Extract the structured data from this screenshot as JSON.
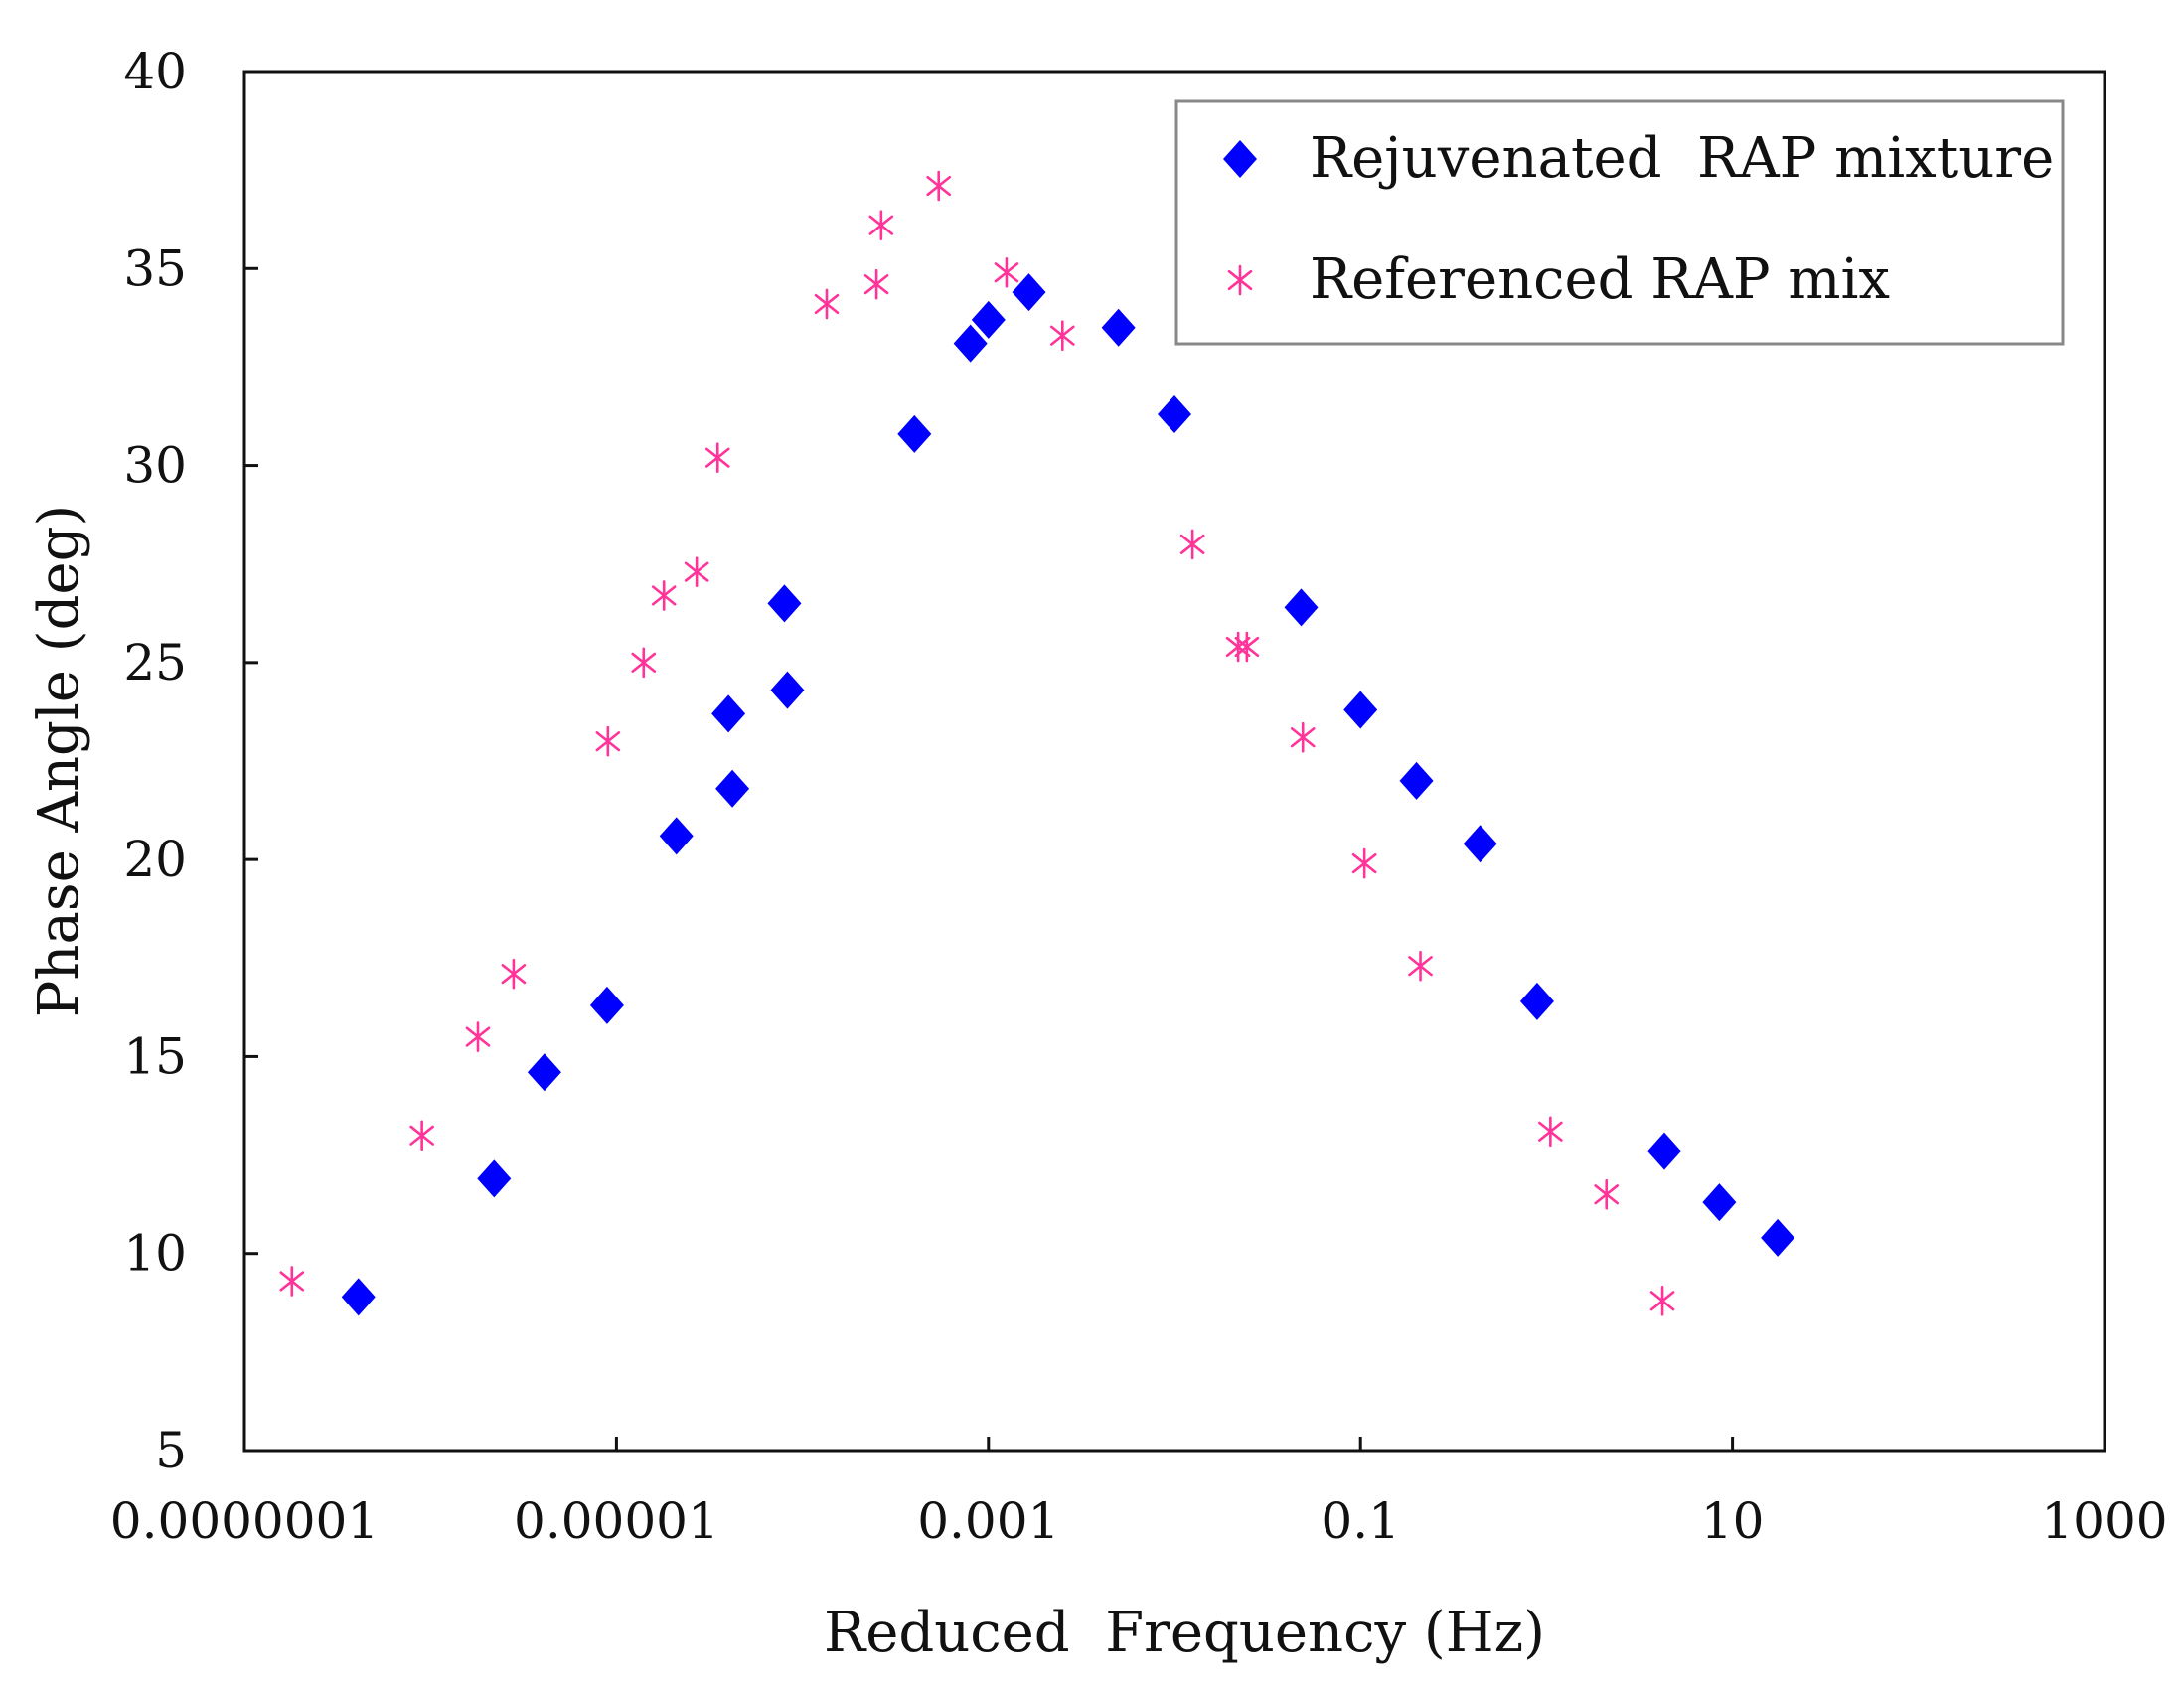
{
  "chart_data": {
    "type": "scatter",
    "title": "",
    "xlabel": "Reduced  Frequency (Hz)",
    "ylabel": "Phase Angle (deg)",
    "xscale": "log",
    "xlim": [
      1e-07,
      1000
    ],
    "ylim": [
      5,
      40
    ],
    "xticks": [
      1e-07,
      1e-05,
      0.001,
      0.1,
      10,
      1000
    ],
    "xtick_labels": [
      "0.0000001",
      "0.00001",
      "0.001",
      "0.1",
      "10",
      "1000"
    ],
    "yticks": [
      5,
      10,
      15,
      20,
      25,
      30,
      35,
      40
    ],
    "ytick_labels": [
      "5",
      "10",
      "15",
      "20",
      "25",
      "30",
      "35",
      "40"
    ],
    "grid": false,
    "legend_position": "top-right",
    "series": [
      {
        "name": "Rejuvenated  RAP mixture",
        "marker": "diamond",
        "color": "#0000ff",
        "points": [
          {
            "x": 4.1e-07,
            "y": 8.9
          },
          {
            "x": 2.2e-06,
            "y": 11.9
          },
          {
            "x": 4.1e-06,
            "y": 14.6
          },
          {
            "x": 8.9e-06,
            "y": 16.3
          },
          {
            "x": 2.1e-05,
            "y": 20.6
          },
          {
            "x": 4e-05,
            "y": 23.7
          },
          {
            "x": 4.2e-05,
            "y": 21.8
          },
          {
            "x": 8e-05,
            "y": 26.5
          },
          {
            "x": 8.3e-05,
            "y": 24.3
          },
          {
            "x": 0.0004,
            "y": 30.8
          },
          {
            "x": 0.0008,
            "y": 33.1
          },
          {
            "x": 0.001,
            "y": 33.7
          },
          {
            "x": 0.00165,
            "y": 34.4
          },
          {
            "x": 0.005,
            "y": 33.5
          },
          {
            "x": 0.01,
            "y": 31.3
          },
          {
            "x": 0.048,
            "y": 26.4
          },
          {
            "x": 0.1,
            "y": 23.8
          },
          {
            "x": 0.2,
            "y": 22.0
          },
          {
            "x": 0.44,
            "y": 20.4
          },
          {
            "x": 0.89,
            "y": 16.4
          },
          {
            "x": 4.3,
            "y": 12.6
          },
          {
            "x": 8.5,
            "y": 11.3
          },
          {
            "x": 17.5,
            "y": 10.4
          }
        ]
      },
      {
        "name": "Referenced RAP mix",
        "marker": "asterisk",
        "color": "#ff3399",
        "points": [
          {
            "x": 1.8e-07,
            "y": 9.3
          },
          {
            "x": 9e-07,
            "y": 13.0
          },
          {
            "x": 1.8e-06,
            "y": 15.5
          },
          {
            "x": 2.8e-06,
            "y": 17.1
          },
          {
            "x": 9e-06,
            "y": 23.0
          },
          {
            "x": 1.4e-05,
            "y": 25.0
          },
          {
            "x": 1.8e-05,
            "y": 26.7
          },
          {
            "x": 2.7e-05,
            "y": 27.3
          },
          {
            "x": 3.5e-05,
            "y": 30.2
          },
          {
            "x": 0.000135,
            "y": 34.1
          },
          {
            "x": 0.00025,
            "y": 34.6
          },
          {
            "x": 0.000265,
            "y": 36.1
          },
          {
            "x": 0.00054,
            "y": 37.1
          },
          {
            "x": 0.00125,
            "y": 34.9
          },
          {
            "x": 0.0025,
            "y": 33.3
          },
          {
            "x": 0.0125,
            "y": 28.0
          },
          {
            "x": 0.022,
            "y": 25.4
          },
          {
            "x": 0.0245,
            "y": 25.4
          },
          {
            "x": 0.049,
            "y": 23.1
          },
          {
            "x": 0.105,
            "y": 19.9
          },
          {
            "x": 0.21,
            "y": 17.3
          },
          {
            "x": 1.05,
            "y": 13.1
          },
          {
            "x": 2.1,
            "y": 11.5
          },
          {
            "x": 4.2,
            "y": 8.8
          }
        ]
      }
    ]
  }
}
